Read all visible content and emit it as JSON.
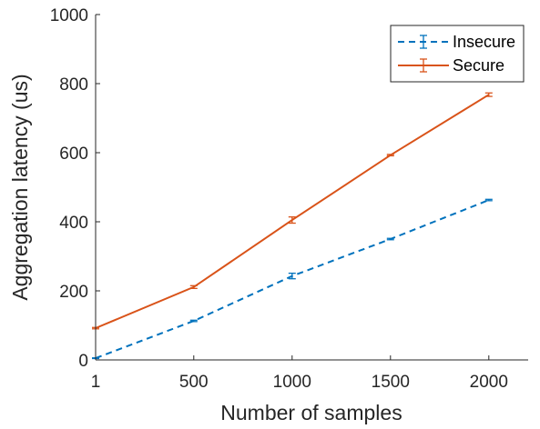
{
  "chart_data": {
    "type": "line",
    "xlabel": "Number of samples",
    "ylabel": "Aggregation latency (us)",
    "xlim": [
      1,
      2200
    ],
    "ylim": [
      0,
      1000
    ],
    "xticks": [
      1,
      500,
      1000,
      1500,
      2000
    ],
    "yticks": [
      0,
      200,
      400,
      600,
      800,
      1000
    ],
    "grid": false,
    "legend_position": "top-right",
    "x": [
      1,
      500,
      1000,
      1500,
      2000
    ],
    "series": [
      {
        "name": "Insecure",
        "color": "#0072BD",
        "line_style": "dashed",
        "values": [
          5,
          113,
          243,
          350,
          463
        ],
        "error": [
          1,
          2,
          8,
          2,
          2
        ]
      },
      {
        "name": "Secure",
        "color": "#D95319",
        "line_style": "solid",
        "values": [
          92,
          211,
          405,
          593,
          768
        ],
        "error": [
          2,
          4,
          9,
          2,
          5
        ]
      }
    ]
  }
}
